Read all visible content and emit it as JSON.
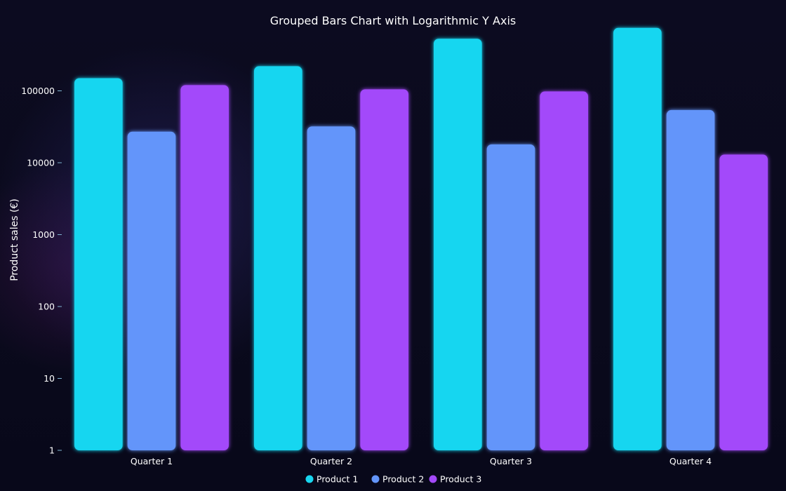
{
  "chart_data": {
    "type": "bar",
    "title": "Grouped Bars Chart with Logarithmic Y Axis",
    "xlabel": "",
    "ylabel": "Product sales (€)",
    "y_scale": "log",
    "ylim": [
      1,
      1000000
    ],
    "y_ticks": [
      "1",
      "10",
      "100",
      "1000",
      "10000",
      "100000"
    ],
    "categories": [
      "Quarter 1",
      "Quarter 2",
      "Quarter 3",
      "Quarter 4"
    ],
    "series": [
      {
        "name": "Product 1",
        "color": "#18d6f0",
        "values": [
          150000,
          220000,
          530000,
          750000
        ]
      },
      {
        "name": "Product 2",
        "color": "#6395fa",
        "values": [
          27000,
          32000,
          18000,
          54000
        ]
      },
      {
        "name": "Product 3",
        "color": "#a349fa",
        "values": [
          120000,
          105000,
          98000,
          13000
        ]
      }
    ],
    "legend_position": "bottom-center",
    "grid": false
  }
}
